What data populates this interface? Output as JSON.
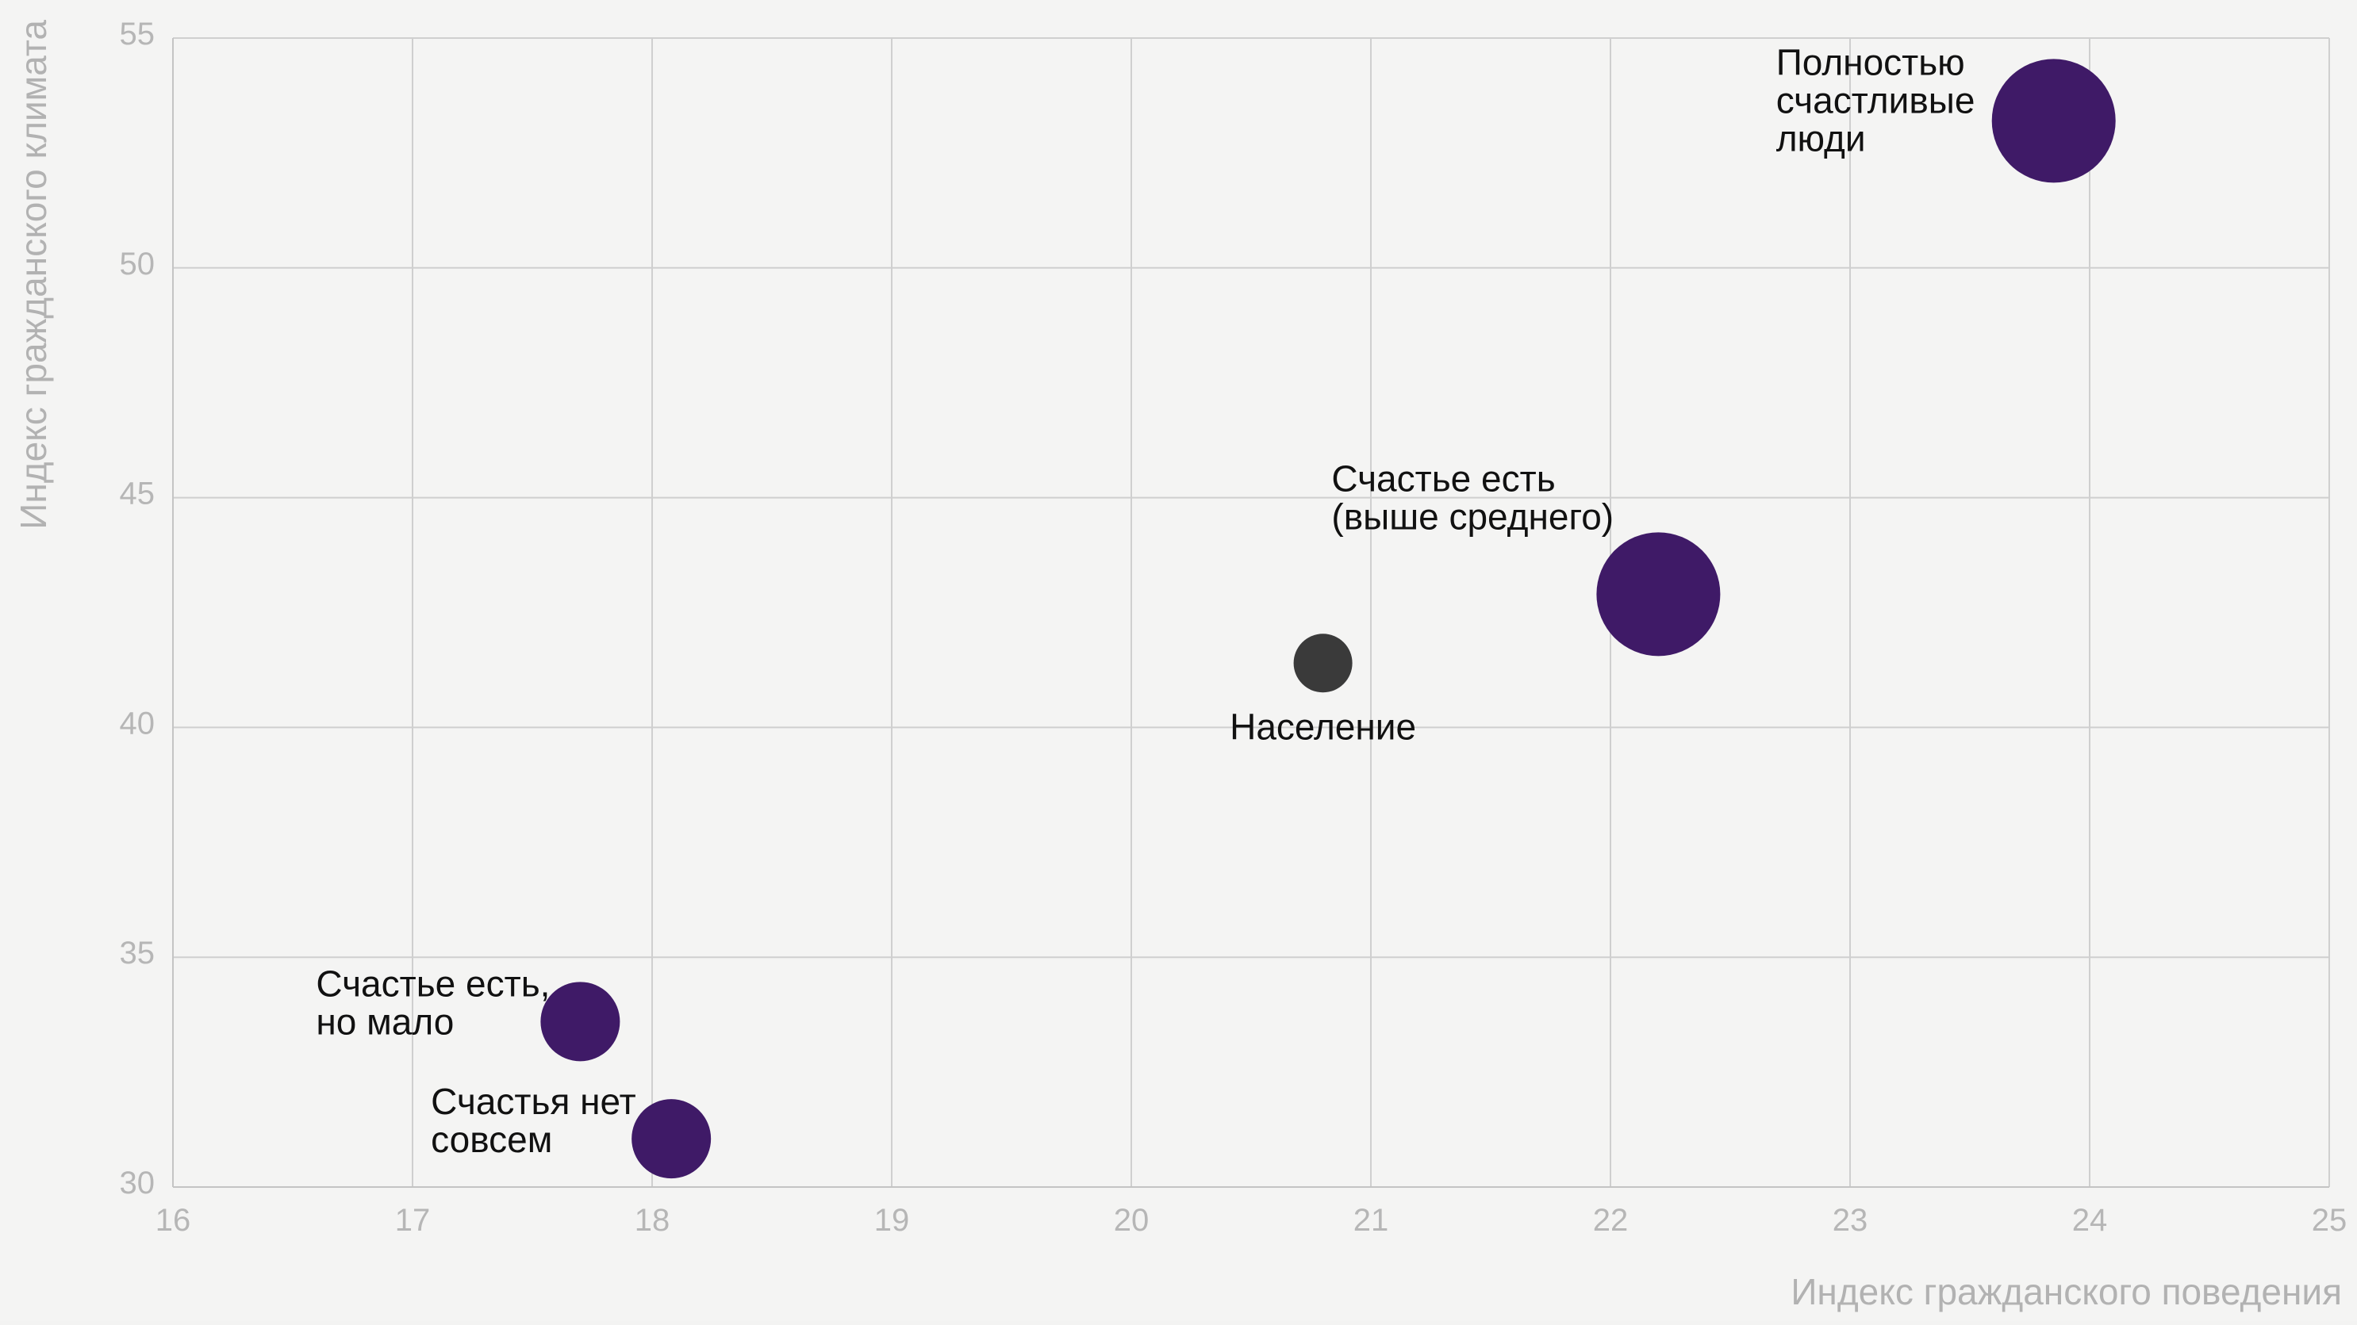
{
  "chart_data": {
    "type": "scatter",
    "xlabel": "Индекс гражданского поведения",
    "ylabel": "Индекс гражданского климата",
    "xlim": [
      16,
      25
    ],
    "ylim": [
      30,
      55
    ],
    "x_ticks": [
      16,
      17,
      18,
      19,
      20,
      21,
      22,
      23,
      24,
      25
    ],
    "y_ticks": [
      30,
      35,
      40,
      45,
      50,
      55
    ],
    "grid": true,
    "points": [
      {
        "name": "Полностью счастливые люди",
        "label_lines": [
          "Полностью",
          "счастливые",
          "люди"
        ],
        "x": 23.85,
        "y": 53.2,
        "size": "large",
        "color": "#3f1a67"
      },
      {
        "name": "Счастье есть (выше среднего)",
        "label_lines": [
          "Счастье есть",
          "(выше среднего)"
        ],
        "x": 22.2,
        "y": 42.9,
        "size": "large",
        "color": "#3f1a67"
      },
      {
        "name": "Население",
        "label_lines": [
          "Население"
        ],
        "x": 20.8,
        "y": 41.4,
        "size": "small",
        "color": "#3a3a3a"
      },
      {
        "name": "Счастье есть, но мало",
        "label_lines": [
          "Счастье есть,",
          "но мало"
        ],
        "x": 17.7,
        "y": 33.6,
        "size": "medium",
        "color": "#3f1a67"
      },
      {
        "name": "Счастья нет совсем",
        "label_lines": [
          "Счастья нет",
          "совсем"
        ],
        "x": 18.08,
        "y": 31.05,
        "size": "medium",
        "color": "#3f1a67"
      }
    ]
  }
}
